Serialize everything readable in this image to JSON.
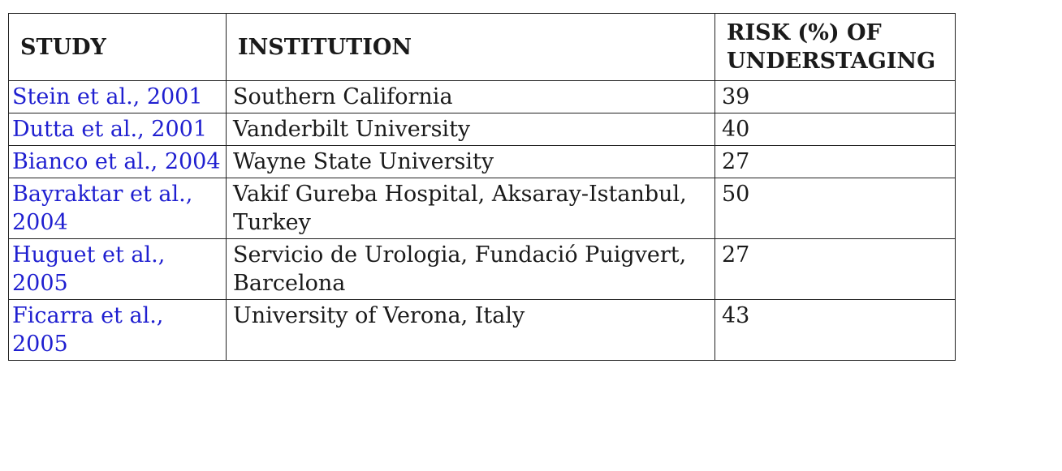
{
  "table": {
    "headers": {
      "study": "STUDY",
      "institution": "INSTITUTION",
      "risk": "RISK (%) OF UNDERSTAGING"
    },
    "rows": [
      {
        "study": "Stein et al., 2001",
        "institution": "Southern California",
        "risk": "39"
      },
      {
        "study": "Dutta et al., 2001",
        "institution": "Vanderbilt University",
        "risk": "40"
      },
      {
        "study": "Bianco et al., 2004",
        "institution": "Wayne State University",
        "risk": "27"
      },
      {
        "study": "Bayraktar et al., 2004",
        "institution": "Vakif Gureba Hospital, Aksaray-Istanbul, Turkey",
        "risk": "50"
      },
      {
        "study": "Huguet et al., 2005",
        "institution": "Servicio de Urologia, Fundació Puigvert, Barcelona",
        "risk": "27"
      },
      {
        "study": "Ficarra et al., 2005",
        "institution": "University of Verona, Italy",
        "risk": "43"
      }
    ]
  },
  "colors": {
    "link": "#1f1fd0",
    "text": "#1a1a1a",
    "border": "#222222"
  }
}
